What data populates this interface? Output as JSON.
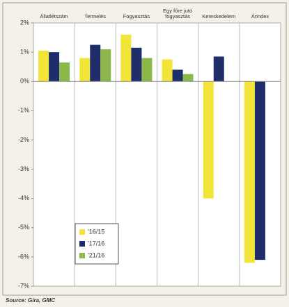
{
  "chart_data": {
    "type": "bar",
    "categories": [
      "Állatlétszám",
      "Termelés",
      "Fogyasztás",
      "Egy főre jutó fogyasztás",
      "Kereskedelem",
      "Árindex"
    ],
    "series": [
      {
        "name": "'16/15",
        "color": "#f3e538",
        "values": [
          1.05,
          0.8,
          1.6,
          0.75,
          -4.0,
          -6.2
        ]
      },
      {
        "name": "'17/16",
        "color": "#1f2d6b",
        "values": [
          1.0,
          1.25,
          1.15,
          0.4,
          0.85,
          -6.1
        ]
      },
      {
        "name": "'21/16",
        "color": "#8cb84b",
        "values": [
          0.65,
          1.1,
          0.8,
          0.25,
          null,
          null
        ]
      }
    ],
    "ylim": [
      -7,
      2
    ],
    "yticks": [
      {
        "value": 2,
        "label": "2%"
      },
      {
        "value": 1,
        "label": "1%"
      },
      {
        "value": 0,
        "label": "0%"
      },
      {
        "value": -1,
        "label": "-1%"
      },
      {
        "value": -2,
        "label": "-2%"
      },
      {
        "value": -3,
        "label": "-3%"
      },
      {
        "value": -4,
        "label": "-4%"
      },
      {
        "value": -5,
        "label": "-5%"
      },
      {
        "value": -6,
        "label": "-6%"
      },
      {
        "value": -7,
        "label": "-7%"
      }
    ],
    "legend": "lower left",
    "source": "Source: Gira, GMC"
  }
}
